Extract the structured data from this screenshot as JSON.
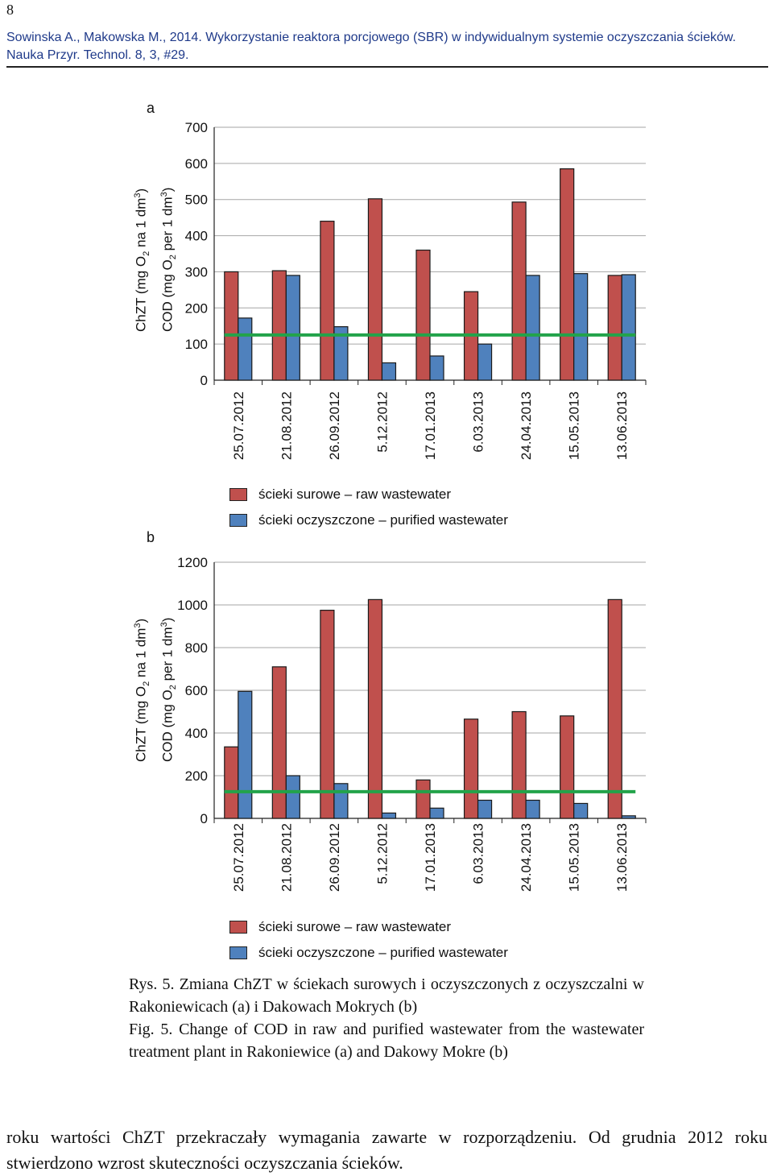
{
  "page_number": "8",
  "citation": "Sowinska A., Makowska M., 2014. Wykorzystanie reaktora porcjowego (SBR) w indywidualnym systemie oczyszczania ścieków. Nauka Przyr. Technol. 8, 3, #29.",
  "colors": {
    "raw": "#c0504d",
    "purified": "#4f81bd",
    "limit_line": "#22a34a",
    "axis": "#222222",
    "grid": "#a6a6a6"
  },
  "ylabel": {
    "line1_parts": [
      "ChZT (mg O",
      "2",
      " na 1 dm",
      "3",
      ")"
    ],
    "line2_parts": [
      "COD (mg O",
      "2",
      " per 1 dm",
      "3",
      ")"
    ]
  },
  "legend": {
    "raw": "ścieki surowe – raw wastewater",
    "purified": "ścieki oczyszczone – purified wastewater"
  },
  "chart_data": [
    {
      "type": "bar",
      "panel": "a",
      "categories": [
        "25.07.2012",
        "21.08.2012",
        "26.09.2012",
        "5.12.2012",
        "17.01.2013",
        "6.03.2013",
        "24.04.2013",
        "15.05.2013",
        "13.06.2013"
      ],
      "series": [
        {
          "name": "ścieki surowe – raw wastewater",
          "values": [
            300,
            303,
            440,
            502,
            360,
            245,
            493,
            585,
            290
          ]
        },
        {
          "name": "ścieki oczyszczone – purified wastewater",
          "values": [
            172,
            290,
            148,
            48,
            67,
            100,
            290,
            295,
            292
          ]
        }
      ],
      "limit_line": 125,
      "ylim": [
        0,
        700
      ],
      "yticks": [
        0,
        100,
        200,
        300,
        400,
        500,
        600,
        700
      ],
      "grid": true,
      "legend_position": "bottom"
    },
    {
      "type": "bar",
      "panel": "b",
      "categories": [
        "25.07.2012",
        "21.08.2012",
        "26.09.2012",
        "5.12.2012",
        "17.01.2013",
        "6.03.2013",
        "24.04.2013",
        "15.05.2013",
        "13.06.2013"
      ],
      "series": [
        {
          "name": "ścieki surowe – raw wastewater",
          "values": [
            335,
            710,
            975,
            1025,
            180,
            465,
            500,
            480,
            1025
          ]
        },
        {
          "name": "ścieki oczyszczone – purified wastewater",
          "values": [
            595,
            200,
            163,
            25,
            48,
            85,
            85,
            70,
            12
          ]
        }
      ],
      "limit_line": 125,
      "ylim": [
        0,
        1200
      ],
      "yticks": [
        0,
        200,
        400,
        600,
        800,
        1000,
        1200
      ],
      "grid": true,
      "legend_position": "bottom"
    }
  ],
  "caption": {
    "pl": "Rys. 5. Zmiana ChZT w ściekach surowych i oczyszczonych z oczyszczalni w Rakoniewicach (a) i Dakowach Mokrych (b)",
    "en": "Fig. 5. Change of COD in raw and purified wastewater from the wastewater treatment plant in Rakoniewice (a) and Dakowy Mokre (b)"
  },
  "footer_text": "roku wartości ChZT przekraczały wymagania zawarte w rozporządzeniu. Od grudnia 2012 roku stwierdzono wzrost skuteczności oczyszczania ścieków."
}
